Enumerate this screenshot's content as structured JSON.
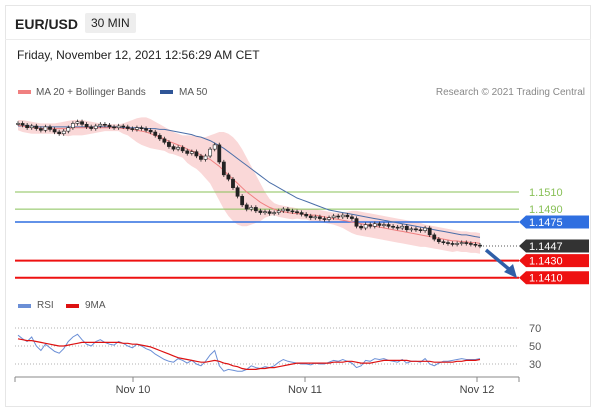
{
  "header": {
    "symbol": "EUR/USD",
    "timeframe": "30 MIN",
    "datetime": "Friday, November 12, 2021 12:56:29 AM CET"
  },
  "legend": {
    "ma20_label": "MA 20 + Bollinger Bands",
    "ma50_label": "MA 50",
    "credit": "Research © 2021 Trading Central",
    "rsi_label": "RSI",
    "ma9_label": "9MA"
  },
  "colors": {
    "bollinger": "#f5a9a9",
    "ma20": "#f08080",
    "ma50": "#4a6ea8",
    "support": "#ee1111",
    "pivot": "#2f6fe0",
    "resistance": "#88c057",
    "current": "#333333",
    "rsi": "#6b8fd6",
    "rsi_ma": "#dd1111",
    "arrow": "#2f5fa8"
  },
  "chart_data": [
    {
      "type": "candlestick",
      "xaxis_ticks": [
        "Nov 10",
        "Nov 11",
        "Nov 12"
      ],
      "levels": [
        {
          "value": 1.151,
          "label": "1.1510",
          "kind": "resistance"
        },
        {
          "value": 1.149,
          "label": "1.1490",
          "kind": "resistance"
        },
        {
          "value": 1.1475,
          "label": "1.1475",
          "kind": "pivot"
        },
        {
          "value": 1.1447,
          "label": "1.1447",
          "kind": "current"
        },
        {
          "value": 1.143,
          "label": "1.1430",
          "kind": "support"
        },
        {
          "value": 1.141,
          "label": "1.1410",
          "kind": "support"
        }
      ],
      "close": [
        1.159,
        1.1588,
        1.1585,
        1.1587,
        1.1584,
        1.1582,
        1.1586,
        1.1583,
        1.158,
        1.1578,
        1.1581,
        1.1585,
        1.159,
        1.1592,
        1.1589,
        1.1586,
        1.1584,
        1.1587,
        1.1589,
        1.1588,
        1.1586,
        1.1585,
        1.1587,
        1.1586,
        1.1584,
        1.1583,
        1.1585,
        1.1584,
        1.1582,
        1.158,
        1.1576,
        1.1572,
        1.1568,
        1.1563,
        1.156,
        1.1562,
        1.1558,
        1.1555,
        1.1557,
        1.1552,
        1.1548,
        1.1552,
        1.156,
        1.1565,
        1.1545,
        1.153,
        1.1525,
        1.1515,
        1.1505,
        1.1495,
        1.149,
        1.1492,
        1.1488,
        1.1486,
        1.1487,
        1.1485,
        1.1486,
        1.1488,
        1.149,
        1.1488,
        1.1487,
        1.1486,
        1.1484,
        1.1482,
        1.148,
        1.1481,
        1.1479,
        1.1478,
        1.148,
        1.1482,
        1.1481,
        1.1483,
        1.1481,
        1.1479,
        1.147,
        1.1468,
        1.1472,
        1.147,
        1.1473,
        1.1471,
        1.1472,
        1.147,
        1.1469,
        1.1468,
        1.147,
        1.1466,
        1.1467,
        1.1466,
        1.1465,
        1.1468,
        1.146,
        1.1455,
        1.1452,
        1.1451,
        1.145,
        1.1449,
        1.145,
        1.1451,
        1.145,
        1.1449,
        1.1448,
        1.1447
      ],
      "ma20": [
        1.1588,
        1.1587,
        1.1586,
        1.1585,
        1.1585,
        1.1584,
        1.1584,
        1.1584,
        1.1584,
        1.1584,
        1.1584,
        1.1584,
        1.1585,
        1.1585,
        1.1585,
        1.1585,
        1.1585,
        1.1585,
        1.1585,
        1.1585,
        1.1585,
        1.1585,
        1.1585,
        1.1584,
        1.1584,
        1.1583,
        1.1582,
        1.1581,
        1.158,
        1.1578,
        1.1576,
        1.1574,
        1.1572,
        1.1569,
        1.1567,
        1.1565,
        1.1563,
        1.156,
        1.1558,
        1.1556,
        1.1553,
        1.155,
        1.1548,
        1.1544,
        1.154,
        1.1535,
        1.153,
        1.1525,
        1.152,
        1.1515,
        1.151,
        1.1506,
        1.1502,
        1.1498,
        1.1495,
        1.1492,
        1.149,
        1.1488,
        1.1487,
        1.1486,
        1.1485,
        1.1485,
        1.1484,
        1.1484,
        1.1483,
        1.1483,
        1.1482,
        1.1481,
        1.148,
        1.1479,
        1.1478,
        1.1477,
        1.1476,
        1.1475,
        1.1474,
        1.1473,
        1.1472,
        1.1471,
        1.147,
        1.1469,
        1.1468,
        1.1467,
        1.1466,
        1.1465,
        1.1464,
        1.1463,
        1.1462,
        1.1461,
        1.146,
        1.1459,
        1.1458,
        1.1457,
        1.1456,
        1.1455,
        1.1454,
        1.1453,
        1.1453,
        1.1452,
        1.1452,
        1.1451,
        1.1451,
        1.145
      ],
      "bb_upper": [
        1.1594,
        1.1594,
        1.1593,
        1.1592,
        1.1591,
        1.159,
        1.159,
        1.159,
        1.159,
        1.1591,
        1.1592,
        1.1593,
        1.1594,
        1.1594,
        1.1594,
        1.1593,
        1.1592,
        1.1591,
        1.159,
        1.1589,
        1.1589,
        1.1589,
        1.1589,
        1.159,
        1.1592,
        1.1594,
        1.1596,
        1.1597,
        1.1597,
        1.1595,
        1.1592,
        1.1589,
        1.1586,
        1.1583,
        1.158,
        1.1578,
        1.1576,
        1.1576,
        1.1576,
        1.1575,
        1.1574,
        1.1574,
        1.1576,
        1.1578,
        1.158,
        1.158,
        1.1578,
        1.1574,
        1.1568,
        1.156,
        1.155,
        1.154,
        1.153,
        1.152,
        1.151,
        1.1502,
        1.1497,
        1.1495,
        1.1494,
        1.1493,
        1.1492,
        1.1491,
        1.149,
        1.149,
        1.149,
        1.149,
        1.1489,
        1.1488,
        1.1487,
        1.1486,
        1.1486,
        1.1486,
        1.1487,
        1.1488,
        1.1488,
        1.1487,
        1.1486,
        1.1485,
        1.1484,
        1.1483,
        1.1482,
        1.1481,
        1.148,
        1.1479,
        1.1478,
        1.1477,
        1.1476,
        1.1475,
        1.1474,
        1.1472,
        1.1471,
        1.147,
        1.1469,
        1.1468,
        1.1467,
        1.1466,
        1.1465,
        1.1464,
        1.1464,
        1.1463,
        1.1463,
        1.1462
      ],
      "bb_lower": [
        1.1582,
        1.158,
        1.1579,
        1.1578,
        1.1578,
        1.1578,
        1.1578,
        1.1578,
        1.1578,
        1.1577,
        1.1576,
        1.1575,
        1.1576,
        1.1576,
        1.1576,
        1.1577,
        1.1578,
        1.1579,
        1.158,
        1.1581,
        1.1581,
        1.1581,
        1.1581,
        1.1578,
        1.1576,
        1.1572,
        1.1568,
        1.1565,
        1.1563,
        1.1561,
        1.156,
        1.1559,
        1.1558,
        1.1555,
        1.1554,
        1.1552,
        1.155,
        1.1544,
        1.154,
        1.1537,
        1.1532,
        1.1526,
        1.152,
        1.151,
        1.15,
        1.149,
        1.1482,
        1.1476,
        1.1472,
        1.147,
        1.147,
        1.1472,
        1.1474,
        1.1476,
        1.148,
        1.1482,
        1.1483,
        1.1481,
        1.148,
        1.1479,
        1.1478,
        1.1479,
        1.1478,
        1.1478,
        1.1476,
        1.1476,
        1.1475,
        1.1474,
        1.1473,
        1.1472,
        1.147,
        1.1468,
        1.1465,
        1.1462,
        1.146,
        1.1459,
        1.1458,
        1.1457,
        1.1456,
        1.1455,
        1.1454,
        1.1453,
        1.1452,
        1.1451,
        1.145,
        1.1449,
        1.1448,
        1.1447,
        1.1446,
        1.1446,
        1.1445,
        1.1444,
        1.1443,
        1.1442,
        1.1441,
        1.144,
        1.1441,
        1.144,
        1.144,
        1.1439,
        1.1439,
        1.1438
      ],
      "ma50": [
        1.1587,
        1.1587,
        1.1587,
        1.1587,
        1.1586,
        1.1586,
        1.1586,
        1.1586,
        1.1586,
        1.1586,
        1.1586,
        1.1586,
        1.1586,
        1.1586,
        1.1586,
        1.1586,
        1.1586,
        1.1586,
        1.1586,
        1.1586,
        1.1586,
        1.1586,
        1.1586,
        1.1585,
        1.1585,
        1.1585,
        1.1585,
        1.1585,
        1.1584,
        1.1584,
        1.1584,
        1.1583,
        1.1583,
        1.1582,
        1.1581,
        1.158,
        1.1579,
        1.1578,
        1.1577,
        1.1575,
        1.1574,
        1.1572,
        1.157,
        1.1567,
        1.1564,
        1.1561,
        1.1557,
        1.1553,
        1.1549,
        1.1545,
        1.1541,
        1.1537,
        1.1533,
        1.1529,
        1.1525,
        1.1521,
        1.1518,
        1.1515,
        1.1512,
        1.1509,
        1.1506,
        1.1503,
        1.1501,
        1.1499,
        1.1497,
        1.1495,
        1.1493,
        1.1491,
        1.1489,
        1.1488,
        1.1487,
        1.1486,
        1.1485,
        1.1484,
        1.1483,
        1.1482,
        1.1481,
        1.148,
        1.1479,
        1.1478,
        1.1477,
        1.1476,
        1.1475,
        1.1474,
        1.1473,
        1.1472,
        1.1471,
        1.147,
        1.1469,
        1.1468,
        1.1467,
        1.1466,
        1.1465,
        1.1464,
        1.1463,
        1.1462,
        1.1461,
        1.146,
        1.146,
        1.1459,
        1.1458,
        1.1457
      ]
    },
    {
      "type": "line",
      "yaxis_ticks": [
        70,
        50,
        30
      ],
      "rsi": [
        62,
        58,
        55,
        60,
        50,
        45,
        52,
        48,
        44,
        42,
        47,
        55,
        60,
        63,
        57,
        52,
        50,
        55,
        57,
        54,
        52,
        51,
        55,
        53,
        50,
        48,
        52,
        50,
        47,
        45,
        41,
        38,
        35,
        33,
        32,
        36,
        34,
        31,
        34,
        30,
        28,
        33,
        40,
        45,
        28,
        22,
        24,
        23,
        22,
        22,
        24,
        28,
        26,
        25,
        27,
        26,
        28,
        32,
        35,
        33,
        32,
        31,
        30,
        30,
        29,
        31,
        30,
        30,
        32,
        34,
        33,
        35,
        33,
        31,
        26,
        28,
        34,
        33,
        36,
        35,
        36,
        34,
        33,
        32,
        35,
        31,
        33,
        33,
        32,
        36,
        30,
        28,
        31,
        33,
        33,
        34,
        35,
        36,
        35,
        35,
        35,
        36
      ],
      "rsi_ma": [
        58,
        57,
        56,
        56,
        55,
        54,
        53,
        52,
        51,
        50,
        50,
        51,
        52,
        53,
        54,
        54,
        54,
        54,
        54,
        54,
        54,
        54,
        54,
        53,
        53,
        52,
        52,
        51,
        50,
        49,
        47,
        45,
        43,
        41,
        39,
        37,
        36,
        35,
        34,
        33,
        32,
        32,
        33,
        34,
        33,
        31,
        30,
        28,
        27,
        25,
        24,
        24,
        24,
        25,
        25,
        26,
        26,
        27,
        28,
        29,
        30,
        31,
        31,
        31,
        31,
        31,
        31,
        31,
        31,
        32,
        32,
        32,
        33,
        33,
        32,
        31,
        31,
        31,
        32,
        33,
        34,
        34,
        34,
        34,
        34,
        34,
        33,
        33,
        33,
        33,
        33,
        32,
        32,
        32,
        32,
        32,
        33,
        33,
        34,
        34,
        34,
        35
      ]
    }
  ]
}
